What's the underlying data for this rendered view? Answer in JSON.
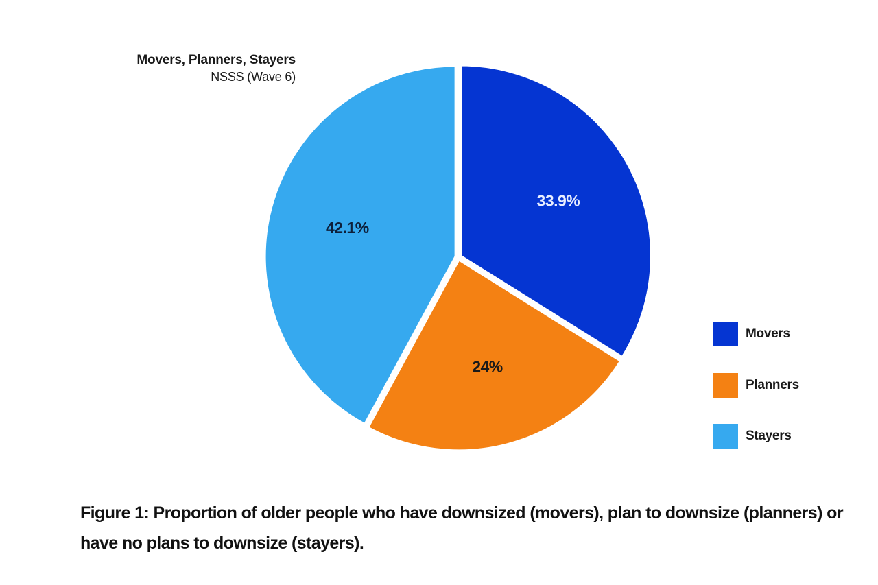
{
  "chart_data": {
    "type": "pie",
    "title": "Movers, Planners, Stayers",
    "subtitle": "NSSS (Wave 6)",
    "slices": [
      {
        "label": "Movers",
        "value": 33.9,
        "display": "33.9%",
        "color": "#0535d2",
        "label_color": "#e8edff"
      },
      {
        "label": "Planners",
        "value": 24,
        "display": "24%",
        "color": "#f48113",
        "label_color": "#1a1a1a"
      },
      {
        "label": "Stayers",
        "value": 42.1,
        "display": "42.1%",
        "color": "#36a9ef",
        "label_color": "#0d1f3a"
      }
    ],
    "legend_position": "right"
  },
  "caption": "Figure 1: Proportion of older people who have downsized (movers), plan to downsize (planners) or have no plans to downsize (stayers)."
}
